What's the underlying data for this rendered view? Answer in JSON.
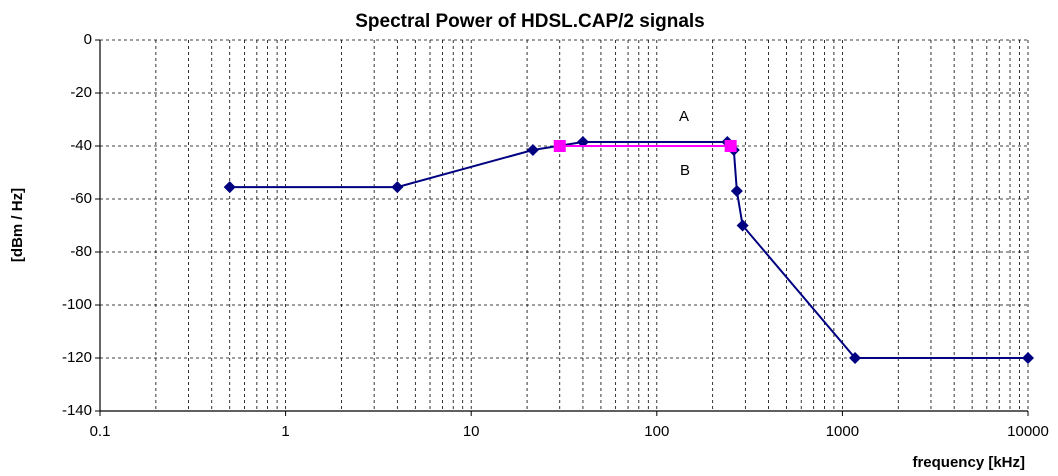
{
  "chart_data": {
    "type": "line",
    "title": "Spectral Power of HDSL.CAP/2 signals",
    "x_label": "frequency [kHz]",
    "y_label": "[dBm / Hz]",
    "x_log": true,
    "grid": true,
    "xlim": [
      0.1,
      10000
    ],
    "xticks": [
      0.1,
      1,
      10,
      100,
      1000,
      10000
    ],
    "ylim": [
      -140,
      0
    ],
    "yticks": [
      -140,
      -120,
      -100,
      -80,
      -60,
      -40,
      -20,
      0
    ],
    "series": [
      {
        "name": "A",
        "color": "#000080",
        "marker": "diamond",
        "x": [
          0.5,
          4,
          21.5,
          40,
          240,
          260,
          270,
          290,
          1170,
          10000
        ],
        "values": [
          -55.5,
          -55.5,
          -41.5,
          -38.5,
          -38.5,
          -41.5,
          -57,
          -70,
          -120,
          -120
        ]
      },
      {
        "name": "B",
        "color": "#ff00ff",
        "marker": "square",
        "x": [
          30,
          250
        ],
        "values": [
          -40,
          -40
        ]
      }
    ]
  }
}
